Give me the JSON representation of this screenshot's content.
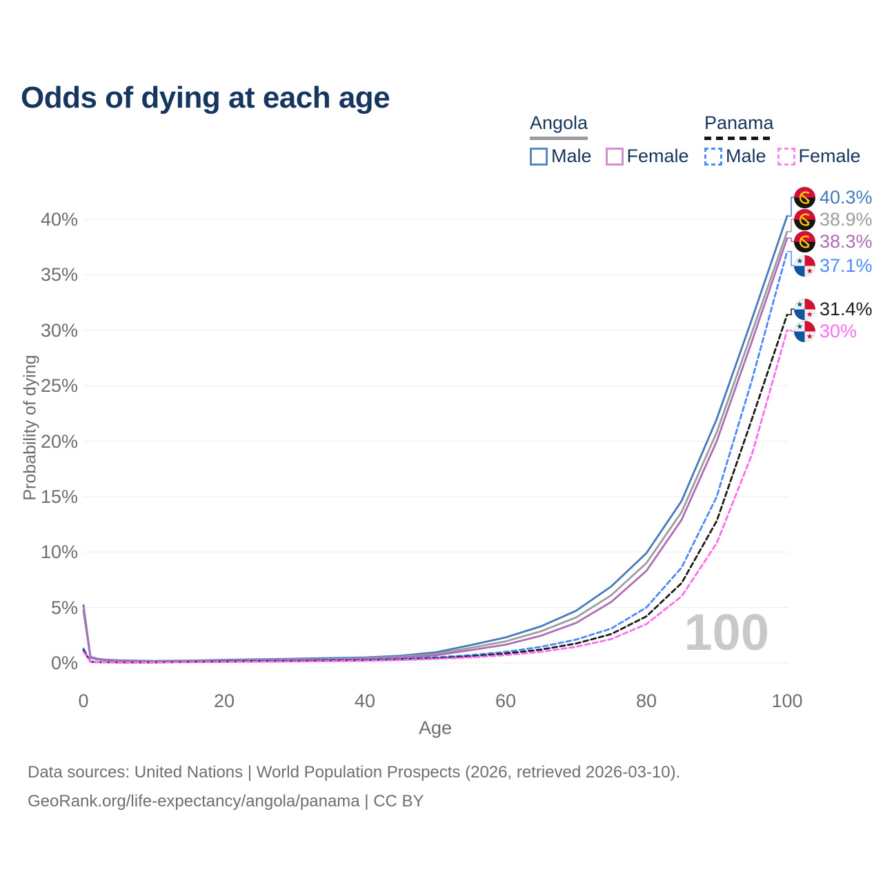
{
  "title": "Odds of dying at each age",
  "legend": {
    "groups": [
      {
        "name": "Angola",
        "line_style": "solid",
        "line_color": "#9b9b9b",
        "items": [
          {
            "label": "Male",
            "box_color": "#5b87c1"
          },
          {
            "label": "Female",
            "box_color": "#cb92cf"
          }
        ]
      },
      {
        "name": "Panama",
        "line_style": "dashed",
        "line_color": "#161616",
        "items": [
          {
            "label": "Male",
            "box_color": "#4d8af8"
          },
          {
            "label": "Female",
            "box_color": "#fc84f2"
          }
        ]
      }
    ]
  },
  "chart_data": {
    "type": "line",
    "title": "Odds of dying at each age",
    "xlabel": "Age",
    "ylabel": "Probability of dying",
    "xlim": [
      0,
      100
    ],
    "ylim": [
      0,
      42
    ],
    "grid": true,
    "legend_position": "top-right",
    "watermark": "100",
    "xticks": [
      {
        "label": "0",
        "value": 0
      },
      {
        "label": "20",
        "value": 20
      },
      {
        "label": "40",
        "value": 40
      },
      {
        "label": "60",
        "value": 60
      },
      {
        "label": "80",
        "value": 80
      },
      {
        "label": "100",
        "value": 100
      }
    ],
    "yticks": [
      {
        "label": "0%",
        "value": 0
      },
      {
        "label": "5%",
        "value": 5
      },
      {
        "label": "10%",
        "value": 10
      },
      {
        "label": "15%",
        "value": 15
      },
      {
        "label": "20%",
        "value": 20
      },
      {
        "label": "25%",
        "value": 25
      },
      {
        "label": "30%",
        "value": 30
      },
      {
        "label": "35%",
        "value": 35
      },
      {
        "label": "40%",
        "value": 40
      }
    ],
    "ages": [
      0,
      1,
      2,
      3,
      5,
      10,
      15,
      20,
      25,
      30,
      35,
      40,
      45,
      50,
      55,
      60,
      65,
      70,
      75,
      80,
      85,
      90,
      95,
      100
    ],
    "series": [
      {
        "id": "angola-male",
        "country": "Angola",
        "legend_label": "Male",
        "dash": "solid",
        "color": "#4579ba",
        "end_label": "40.3%",
        "values_pct": [
          5.2,
          0.55,
          0.38,
          0.3,
          0.24,
          0.18,
          0.21,
          0.28,
          0.33,
          0.38,
          0.44,
          0.5,
          0.65,
          0.95,
          1.6,
          2.3,
          3.3,
          4.7,
          6.9,
          9.9,
          14.6,
          22.0,
          31.0,
          40.3
        ]
      },
      {
        "id": "angola-all",
        "country": "Angola",
        "legend_label": "Angola",
        "dash": "solid",
        "color": "#9d9d9d",
        "end_label": "38.9%",
        "values_pct": [
          4.95,
          0.5,
          0.34,
          0.27,
          0.21,
          0.16,
          0.19,
          0.24,
          0.28,
          0.33,
          0.38,
          0.44,
          0.56,
          0.8,
          1.35,
          1.95,
          2.85,
          4.1,
          6.1,
          9.0,
          13.6,
          20.8,
          29.8,
          38.9
        ]
      },
      {
        "id": "angola-female",
        "country": "Angola",
        "legend_label": "Female",
        "dash": "solid",
        "color": "#ae6cb6",
        "end_label": "38.3%",
        "values_pct": [
          4.7,
          0.46,
          0.31,
          0.25,
          0.19,
          0.15,
          0.17,
          0.21,
          0.25,
          0.29,
          0.33,
          0.38,
          0.48,
          0.68,
          1.15,
          1.65,
          2.45,
          3.6,
          5.5,
          8.3,
          12.9,
          20.0,
          29.0,
          38.3
        ]
      },
      {
        "id": "panama-male",
        "country": "Panama",
        "legend_label": "Male",
        "dash": "dashed",
        "color": "#4d8af8",
        "end_label": "37.1%",
        "values_pct": [
          1.3,
          0.12,
          0.08,
          0.06,
          0.05,
          0.05,
          0.1,
          0.16,
          0.19,
          0.21,
          0.25,
          0.28,
          0.37,
          0.5,
          0.7,
          1.0,
          1.45,
          2.1,
          3.1,
          5.0,
          8.6,
          15.0,
          25.5,
          37.1
        ]
      },
      {
        "id": "panama-all",
        "country": "Panama",
        "legend_label": "Panama",
        "dash": "dashed",
        "color": "#1b1b1b",
        "end_label": "31.4%",
        "values_pct": [
          1.15,
          0.1,
          0.07,
          0.055,
          0.045,
          0.045,
          0.08,
          0.12,
          0.15,
          0.17,
          0.2,
          0.23,
          0.31,
          0.43,
          0.6,
          0.85,
          1.2,
          1.75,
          2.6,
          4.2,
          7.2,
          12.8,
          22.0,
          31.4
        ]
      },
      {
        "id": "panama-female",
        "country": "Panama",
        "legend_label": "Female",
        "dash": "dashed",
        "color": "#fc6cf0",
        "end_label": "30%",
        "values_pct": [
          1.0,
          0.09,
          0.06,
          0.05,
          0.04,
          0.04,
          0.06,
          0.09,
          0.11,
          0.13,
          0.16,
          0.19,
          0.26,
          0.36,
          0.5,
          0.7,
          1.0,
          1.45,
          2.15,
          3.5,
          6.0,
          10.8,
          18.8,
          30.0
        ]
      }
    ]
  },
  "footer": {
    "line1": "Data sources: United Nations | World Population Prospects (2026, retrieved 2026-03-10).",
    "line2": "GeoRank.org/life-expectancy/angola/panama | CC BY"
  }
}
